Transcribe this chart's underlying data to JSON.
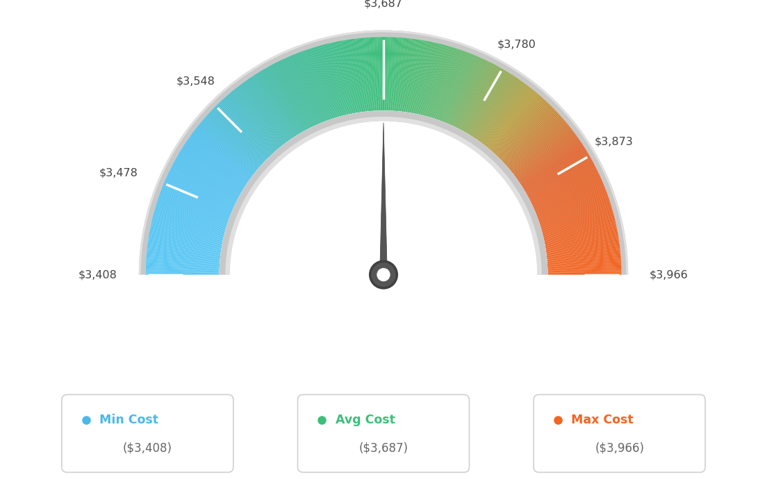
{
  "min_val": 3408,
  "avg_val": 3687,
  "max_val": 3966,
  "tick_labels": [
    "$3,408",
    "$3,478",
    "$3,548",
    "$3,687",
    "$3,780",
    "$3,873",
    "$3,966"
  ],
  "tick_values": [
    3408,
    3478,
    3548,
    3687,
    3780,
    3873,
    3966
  ],
  "legend": [
    {
      "label": "Min Cost",
      "value": "($3,408)",
      "color": "#4ab8e8"
    },
    {
      "label": "Avg Cost",
      "value": "($3,687)",
      "color": "#3dbf7a"
    },
    {
      "label": "Max Cost",
      "value": "($3,966)",
      "color": "#f26522"
    }
  ],
  "needle_value": 3687,
  "color_stops": [
    [
      0.0,
      "#5bc8f5"
    ],
    [
      0.2,
      "#52c0ee"
    ],
    [
      0.35,
      "#44bba0"
    ],
    [
      0.5,
      "#3dbf7a"
    ],
    [
      0.62,
      "#6ab870"
    ],
    [
      0.72,
      "#b8a045"
    ],
    [
      0.82,
      "#e06530"
    ],
    [
      1.0,
      "#f26522"
    ]
  ],
  "bg_color": "#ffffff",
  "outer_border_color": "#cccccc",
  "inner_arc_color1": "#d8d8d8",
  "inner_arc_color2": "#e8e8e8",
  "needle_color": "#505050",
  "needle_circle_color": "#505050"
}
